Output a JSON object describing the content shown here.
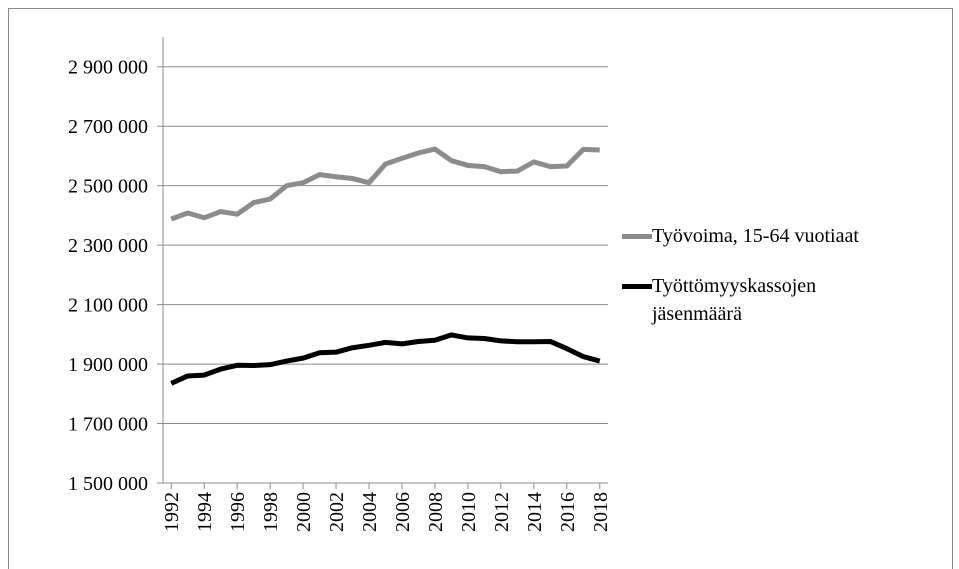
{
  "chart_data": {
    "type": "line",
    "x": [
      1992,
      1993,
      1994,
      1995,
      1996,
      1997,
      1998,
      1999,
      2000,
      2001,
      2002,
      2003,
      2004,
      2005,
      2006,
      2007,
      2008,
      2009,
      2010,
      2011,
      2012,
      2013,
      2014,
      2015,
      2016,
      2017,
      2018
    ],
    "xlim": [
      1991.5,
      2018.5
    ],
    "xticks": [
      1992,
      1994,
      1996,
      1998,
      2000,
      2002,
      2004,
      2006,
      2008,
      2010,
      2012,
      2014,
      2016,
      2018
    ],
    "ylim": [
      1500000,
      3000000
    ],
    "yticks": [
      {
        "value": 1500000,
        "label": "1 500 000"
      },
      {
        "value": 1700000,
        "label": "1 700 000"
      },
      {
        "value": 1900000,
        "label": "1 900 000"
      },
      {
        "value": 2100000,
        "label": "2 100 000"
      },
      {
        "value": 2300000,
        "label": "2 300 000"
      },
      {
        "value": 2500000,
        "label": "2 500 000"
      },
      {
        "value": 2700000,
        "label": "2 700 000"
      },
      {
        "value": 2900000,
        "label": "2 900 000"
      }
    ],
    "grid": true,
    "legend": "right",
    "series": [
      {
        "name": "Työvoima, 15-64 vuotiaat",
        "color": "#8c8c8c",
        "values": [
          2388000,
          2408000,
          2392000,
          2413000,
          2404000,
          2443000,
          2455000,
          2500000,
          2510000,
          2537000,
          2530000,
          2524000,
          2510000,
          2573000,
          2592000,
          2610000,
          2623000,
          2584000,
          2568000,
          2564000,
          2547000,
          2549000,
          2580000,
          2564000,
          2566000,
          2622000,
          2620000
        ]
      },
      {
        "name": "Työttömyyskassojen jäsenmäärä",
        "color": "#000000",
        "values": [
          1835000,
          1860000,
          1863000,
          1883000,
          1896000,
          1895000,
          1898000,
          1910000,
          1920000,
          1938000,
          1940000,
          1955000,
          1963000,
          1973000,
          1968000,
          1976000,
          1980000,
          1998000,
          1988000,
          1986000,
          1978000,
          1975000,
          1975000,
          1976000,
          1952000,
          1925000,
          1910000
        ]
      }
    ]
  }
}
